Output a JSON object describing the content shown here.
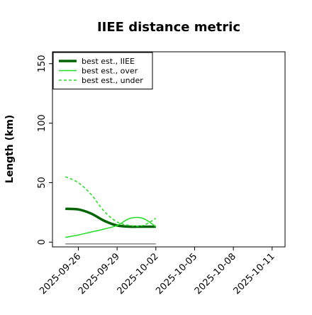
{
  "chart_data": {
    "type": "line",
    "title": "IIEE distance metric",
    "xlabel": "",
    "ylabel": "Length (km)",
    "xlim": [
      "2025-09-24",
      "2025-10-12"
    ],
    "ylim": [
      -4,
      160
    ],
    "yticks": [
      0,
      50,
      100,
      150
    ],
    "xticks": [
      "2025-09-26",
      "2025-09-29",
      "2025-10-02",
      "2025-10-05",
      "2025-10-08",
      "2025-10-11"
    ],
    "grid": false,
    "legend_position": "top-left",
    "series": [
      {
        "name": "best est., IIEE",
        "color": "#006400",
        "style": "solid-thick",
        "x": [
          "2025-09-25",
          "2025-09-26",
          "2025-09-27",
          "2025-09-28",
          "2025-09-29",
          "2025-09-30",
          "2025-10-01",
          "2025-10-02"
        ],
        "y": [
          28,
          27.5,
          24,
          18,
          14,
          13,
          13,
          13
        ]
      },
      {
        "name": "best est., over",
        "color": "#22dd22",
        "style": "solid",
        "x": [
          "2025-09-25",
          "2025-09-26",
          "2025-09-27",
          "2025-09-28",
          "2025-09-29",
          "2025-09-30",
          "2025-10-01",
          "2025-10-02"
        ],
        "y": [
          4,
          6,
          8.5,
          11,
          14,
          20,
          20,
          13
        ]
      },
      {
        "name": "best est., under",
        "color": "#22dd22",
        "style": "dashed",
        "x": [
          "2025-09-25",
          "2025-09-26",
          "2025-09-27",
          "2025-09-28",
          "2025-09-29",
          "2025-09-30",
          "2025-10-01",
          "2025-10-02"
        ],
        "y": [
          55,
          50,
          40,
          26,
          17,
          14,
          14,
          20
        ]
      },
      {
        "name": "",
        "color": "#888888",
        "style": "solid",
        "x": [
          "2025-09-25",
          "2025-10-02"
        ],
        "y": [
          -1.5,
          -1.5
        ]
      }
    ]
  }
}
